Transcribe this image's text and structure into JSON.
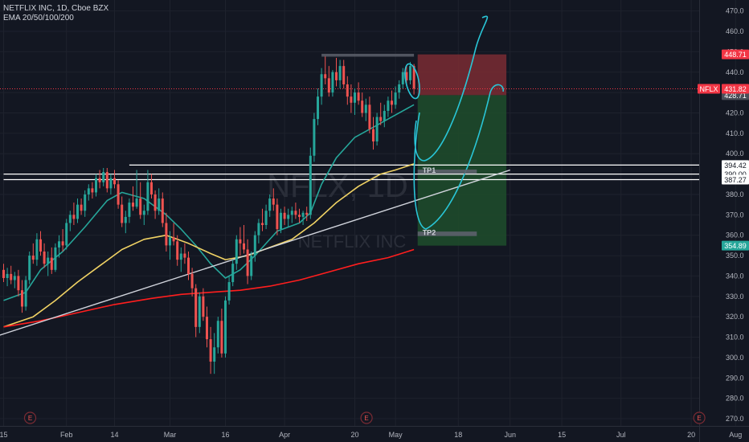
{
  "legend": {
    "symbol_line": "NETFLIX INC, 1D, Cboe BZX",
    "indicator_line": "EMA 20/50/100/200"
  },
  "watermark": {
    "ticker": "NFLX, 1D",
    "name": "NETFLIX INC"
  },
  "colors": {
    "background": "#131722",
    "grid": "#1e222d",
    "up": "#26a69a",
    "down": "#ef5350",
    "ema20": "#26a69a",
    "ema50": "#f0d264",
    "ema100": "#ff1e1e",
    "trendline": "#d1d4dc",
    "sketch": "#29c5d6",
    "stop_zone": "#7a2b33",
    "target_zone": "#1e4d2b"
  },
  "price_tags": {
    "stop": {
      "label": "448.71",
      "value": 448.71,
      "color": "#f23645"
    },
    "current": {
      "symbol": "NFLX",
      "label": "431.82",
      "value": 431.82,
      "color": "#f23645"
    },
    "entry": {
      "label": "428.71",
      "value": 428.71,
      "color": "#4a4e58"
    },
    "tp1_line": {
      "label": "394.42",
      "value": 394.42,
      "color": "#ffffff"
    },
    "tp1b_line": {
      "label": "390.00",
      "value": 390.0,
      "color": "#ffffff"
    },
    "tp2_line": {
      "label": "387.27",
      "value": 387.27,
      "color": "#ffffff"
    },
    "target": {
      "label": "354.89",
      "value": 354.89,
      "color": "#26a69a"
    }
  },
  "annotations": {
    "tp1": "TP1",
    "tp2": "TP2"
  },
  "chart_data": {
    "type": "candlestick",
    "timeframe": "1D",
    "ylim": [
      266,
      474
    ],
    "y_ticks": [
      270,
      280,
      290,
      300,
      310,
      320,
      330,
      340,
      350,
      360,
      370,
      380,
      390,
      400,
      410,
      420,
      430,
      440,
      450,
      460,
      470
    ],
    "x_labels": [
      {
        "label": "15",
        "day": 0
      },
      {
        "label": "Feb",
        "day": 17
      },
      {
        "label": "14",
        "day": 30
      },
      {
        "label": "Mar",
        "day": 45
      },
      {
        "label": "16",
        "day": 60
      },
      {
        "label": "Apr",
        "day": 76
      },
      {
        "label": "20",
        "day": 95
      },
      {
        "label": "May",
        "day": 106
      },
      {
        "label": "18",
        "day": 123
      },
      {
        "label": "Jun",
        "day": 137
      },
      {
        "label": "15",
        "day": 151
      },
      {
        "label": "Jul",
        "day": 167
      },
      {
        "label": "20",
        "day": 186
      },
      {
        "label": "Aug",
        "day": 198
      }
    ],
    "earnings_days": [
      5,
      96,
      186
    ],
    "earnings_label": "E",
    "candles": [
      {
        "d": 0,
        "o": 343,
        "h": 346,
        "l": 337,
        "c": 339
      },
      {
        "d": 1,
        "o": 339,
        "h": 344,
        "l": 335,
        "c": 341
      },
      {
        "d": 2,
        "o": 341,
        "h": 345,
        "l": 336,
        "c": 338
      },
      {
        "d": 3,
        "o": 338,
        "h": 342,
        "l": 334,
        "c": 340
      },
      {
        "d": 4,
        "o": 340,
        "h": 343,
        "l": 330,
        "c": 333
      },
      {
        "d": 5,
        "o": 333,
        "h": 338,
        "l": 322,
        "c": 325
      },
      {
        "d": 6,
        "o": 325,
        "h": 340,
        "l": 323,
        "c": 338
      },
      {
        "d": 7,
        "o": 338,
        "h": 352,
        "l": 336,
        "c": 350
      },
      {
        "d": 8,
        "o": 350,
        "h": 356,
        "l": 346,
        "c": 348
      },
      {
        "d": 9,
        "o": 348,
        "h": 361,
        "l": 345,
        "c": 358
      },
      {
        "d": 10,
        "o": 358,
        "h": 362,
        "l": 350,
        "c": 352
      },
      {
        "d": 11,
        "o": 352,
        "h": 356,
        "l": 344,
        "c": 346
      },
      {
        "d": 12,
        "o": 346,
        "h": 352,
        "l": 340,
        "c": 349
      },
      {
        "d": 13,
        "o": 349,
        "h": 354,
        "l": 341,
        "c": 343
      },
      {
        "d": 14,
        "o": 343,
        "h": 356,
        "l": 342,
        "c": 354
      },
      {
        "d": 15,
        "o": 354,
        "h": 360,
        "l": 349,
        "c": 357
      },
      {
        "d": 16,
        "o": 357,
        "h": 363,
        "l": 352,
        "c": 355
      },
      {
        "d": 17,
        "o": 355,
        "h": 368,
        "l": 353,
        "c": 366
      },
      {
        "d": 18,
        "o": 366,
        "h": 372,
        "l": 362,
        "c": 370
      },
      {
        "d": 19,
        "o": 370,
        "h": 376,
        "l": 365,
        "c": 368
      },
      {
        "d": 20,
        "o": 368,
        "h": 378,
        "l": 366,
        "c": 375
      },
      {
        "d": 21,
        "o": 375,
        "h": 378,
        "l": 370,
        "c": 372
      },
      {
        "d": 22,
        "o": 372,
        "h": 382,
        "l": 369,
        "c": 380
      },
      {
        "d": 23,
        "o": 380,
        "h": 385,
        "l": 377,
        "c": 383
      },
      {
        "d": 24,
        "o": 383,
        "h": 386,
        "l": 378,
        "c": 381
      },
      {
        "d": 25,
        "o": 381,
        "h": 390,
        "l": 379,
        "c": 388
      },
      {
        "d": 26,
        "o": 388,
        "h": 392,
        "l": 383,
        "c": 386
      },
      {
        "d": 27,
        "o": 386,
        "h": 393,
        "l": 384,
        "c": 391
      },
      {
        "d": 28,
        "o": 391,
        "h": 393,
        "l": 381,
        "c": 383
      },
      {
        "d": 29,
        "o": 383,
        "h": 390,
        "l": 380,
        "c": 388
      },
      {
        "d": 30,
        "o": 388,
        "h": 392,
        "l": 383,
        "c": 385
      },
      {
        "d": 31,
        "o": 385,
        "h": 387,
        "l": 373,
        "c": 375
      },
      {
        "d": 32,
        "o": 375,
        "h": 379,
        "l": 364,
        "c": 366
      },
      {
        "d": 33,
        "o": 366,
        "h": 372,
        "l": 361,
        "c": 369
      },
      {
        "d": 34,
        "o": 369,
        "h": 378,
        "l": 366,
        "c": 376
      },
      {
        "d": 35,
        "o": 376,
        "h": 384,
        "l": 372,
        "c": 374
      },
      {
        "d": 36,
        "o": 374,
        "h": 392,
        "l": 373,
        "c": 378
      },
      {
        "d": 37,
        "o": 378,
        "h": 386,
        "l": 368,
        "c": 370
      },
      {
        "d": 38,
        "o": 370,
        "h": 375,
        "l": 365,
        "c": 372
      },
      {
        "d": 39,
        "o": 372,
        "h": 392,
        "l": 370,
        "c": 386
      },
      {
        "d": 40,
        "o": 386,
        "h": 390,
        "l": 378,
        "c": 380
      },
      {
        "d": 41,
        "o": 380,
        "h": 382,
        "l": 368,
        "c": 372
      },
      {
        "d": 42,
        "o": 372,
        "h": 383,
        "l": 370,
        "c": 378
      },
      {
        "d": 43,
        "o": 378,
        "h": 381,
        "l": 364,
        "c": 366
      },
      {
        "d": 44,
        "o": 366,
        "h": 371,
        "l": 352,
        "c": 355
      },
      {
        "d": 45,
        "o": 355,
        "h": 362,
        "l": 348,
        "c": 359
      },
      {
        "d": 46,
        "o": 359,
        "h": 366,
        "l": 355,
        "c": 357
      },
      {
        "d": 47,
        "o": 357,
        "h": 360,
        "l": 345,
        "c": 348
      },
      {
        "d": 48,
        "o": 348,
        "h": 354,
        "l": 342,
        "c": 351
      },
      {
        "d": 49,
        "o": 351,
        "h": 356,
        "l": 346,
        "c": 349
      },
      {
        "d": 50,
        "o": 349,
        "h": 352,
        "l": 338,
        "c": 341
      },
      {
        "d": 51,
        "o": 341,
        "h": 344,
        "l": 330,
        "c": 334
      },
      {
        "d": 52,
        "o": 334,
        "h": 336,
        "l": 310,
        "c": 315
      },
      {
        "d": 53,
        "o": 315,
        "h": 332,
        "l": 312,
        "c": 330
      },
      {
        "d": 54,
        "o": 330,
        "h": 334,
        "l": 318,
        "c": 320
      },
      {
        "d": 55,
        "o": 320,
        "h": 325,
        "l": 305,
        "c": 309
      },
      {
        "d": 56,
        "o": 309,
        "h": 315,
        "l": 292,
        "c": 298
      },
      {
        "d": 57,
        "o": 298,
        "h": 312,
        "l": 292,
        "c": 305
      },
      {
        "d": 58,
        "o": 305,
        "h": 320,
        "l": 302,
        "c": 318
      },
      {
        "d": 59,
        "o": 318,
        "h": 324,
        "l": 300,
        "c": 302
      },
      {
        "d": 60,
        "o": 302,
        "h": 330,
        "l": 300,
        "c": 328
      },
      {
        "d": 61,
        "o": 328,
        "h": 340,
        "l": 326,
        "c": 337
      },
      {
        "d": 62,
        "o": 337,
        "h": 348,
        "l": 335,
        "c": 346
      },
      {
        "d": 63,
        "o": 346,
        "h": 360,
        "l": 343,
        "c": 358
      },
      {
        "d": 64,
        "o": 358,
        "h": 364,
        "l": 350,
        "c": 356
      },
      {
        "d": 65,
        "o": 356,
        "h": 365,
        "l": 351,
        "c": 353
      },
      {
        "d": 66,
        "o": 353,
        "h": 358,
        "l": 336,
        "c": 340
      },
      {
        "d": 67,
        "o": 340,
        "h": 352,
        "l": 338,
        "c": 350
      },
      {
        "d": 68,
        "o": 350,
        "h": 362,
        "l": 347,
        "c": 360
      },
      {
        "d": 69,
        "o": 360,
        "h": 368,
        "l": 356,
        "c": 366
      },
      {
        "d": 70,
        "o": 366,
        "h": 373,
        "l": 362,
        "c": 365
      },
      {
        "d": 71,
        "o": 365,
        "h": 375,
        "l": 363,
        "c": 372
      },
      {
        "d": 72,
        "o": 372,
        "h": 380,
        "l": 369,
        "c": 378
      },
      {
        "d": 73,
        "o": 378,
        "h": 383,
        "l": 372,
        "c": 375
      },
      {
        "d": 74,
        "o": 375,
        "h": 378,
        "l": 360,
        "c": 363
      },
      {
        "d": 75,
        "o": 363,
        "h": 373,
        "l": 361,
        "c": 371
      },
      {
        "d": 76,
        "o": 371,
        "h": 374,
        "l": 365,
        "c": 368
      },
      {
        "d": 77,
        "o": 368,
        "h": 373,
        "l": 364,
        "c": 370
      },
      {
        "d": 78,
        "o": 370,
        "h": 374,
        "l": 366,
        "c": 372
      },
      {
        "d": 79,
        "o": 372,
        "h": 376,
        "l": 368,
        "c": 370
      },
      {
        "d": 80,
        "o": 370,
        "h": 373,
        "l": 366,
        "c": 369
      },
      {
        "d": 81,
        "o": 369,
        "h": 372,
        "l": 365,
        "c": 371
      },
      {
        "d": 82,
        "o": 371,
        "h": 374,
        "l": 367,
        "c": 370
      },
      {
        "d": 83,
        "o": 370,
        "h": 403,
        "l": 368,
        "c": 399
      },
      {
        "d": 84,
        "o": 399,
        "h": 420,
        "l": 396,
        "c": 417
      },
      {
        "d": 85,
        "o": 417,
        "h": 432,
        "l": 414,
        "c": 428
      },
      {
        "d": 86,
        "o": 428,
        "h": 442,
        "l": 424,
        "c": 439
      },
      {
        "d": 87,
        "o": 439,
        "h": 448,
        "l": 434,
        "c": 437
      },
      {
        "d": 88,
        "o": 437,
        "h": 443,
        "l": 428,
        "c": 430
      },
      {
        "d": 89,
        "o": 430,
        "h": 441,
        "l": 428,
        "c": 440
      },
      {
        "d": 90,
        "o": 440,
        "h": 447,
        "l": 433,
        "c": 436
      },
      {
        "d": 91,
        "o": 436,
        "h": 446,
        "l": 432,
        "c": 443
      },
      {
        "d": 92,
        "o": 443,
        "h": 446,
        "l": 432,
        "c": 434
      },
      {
        "d": 93,
        "o": 434,
        "h": 438,
        "l": 424,
        "c": 428
      },
      {
        "d": 94,
        "o": 428,
        "h": 434,
        "l": 420,
        "c": 425
      },
      {
        "d": 95,
        "o": 425,
        "h": 432,
        "l": 419,
        "c": 430
      },
      {
        "d": 96,
        "o": 430,
        "h": 435,
        "l": 424,
        "c": 426
      },
      {
        "d": 97,
        "o": 426,
        "h": 430,
        "l": 418,
        "c": 420
      },
      {
        "d": 98,
        "o": 420,
        "h": 427,
        "l": 416,
        "c": 424
      },
      {
        "d": 99,
        "o": 424,
        "h": 428,
        "l": 410,
        "c": 412
      },
      {
        "d": 100,
        "o": 412,
        "h": 418,
        "l": 402,
        "c": 406
      },
      {
        "d": 101,
        "o": 406,
        "h": 420,
        "l": 404,
        "c": 418
      },
      {
        "d": 102,
        "o": 418,
        "h": 425,
        "l": 414,
        "c": 416
      },
      {
        "d": 103,
        "o": 416,
        "h": 424,
        "l": 413,
        "c": 421
      },
      {
        "d": 104,
        "o": 421,
        "h": 428,
        "l": 418,
        "c": 426
      },
      {
        "d": 105,
        "o": 426,
        "h": 431,
        "l": 420,
        "c": 424
      },
      {
        "d": 106,
        "o": 424,
        "h": 433,
        "l": 422,
        "c": 430
      },
      {
        "d": 107,
        "o": 430,
        "h": 436,
        "l": 427,
        "c": 434
      },
      {
        "d": 108,
        "o": 434,
        "h": 442,
        "l": 432,
        "c": 440
      },
      {
        "d": 109,
        "o": 440,
        "h": 443,
        "l": 434,
        "c": 436
      },
      {
        "d": 110,
        "o": 436,
        "h": 445,
        "l": 434,
        "c": 443
      },
      {
        "d": 111,
        "o": 443,
        "h": 444,
        "l": 429,
        "c": 432
      }
    ],
    "ema_series": [
      {
        "name": "EMA 20",
        "color": "#26a69a",
        "points": [
          [
            0,
            328
          ],
          [
            6,
            332
          ],
          [
            10,
            343
          ],
          [
            16,
            352
          ],
          [
            22,
            364
          ],
          [
            28,
            377
          ],
          [
            32,
            381
          ],
          [
            38,
            378
          ],
          [
            44,
            370
          ],
          [
            48,
            363
          ],
          [
            52,
            355
          ],
          [
            56,
            346
          ],
          [
            60,
            339
          ],
          [
            64,
            343
          ],
          [
            68,
            350
          ],
          [
            74,
            362
          ],
          [
            80,
            366
          ],
          [
            83,
            371
          ],
          [
            86,
            385
          ],
          [
            90,
            398
          ],
          [
            95,
            408
          ],
          [
            100,
            413
          ],
          [
            105,
            418
          ],
          [
            111,
            424
          ]
        ]
      },
      {
        "name": "EMA 50",
        "color": "#f0d264",
        "points": [
          [
            0,
            315
          ],
          [
            8,
            320
          ],
          [
            14,
            328
          ],
          [
            20,
            337
          ],
          [
            26,
            345
          ],
          [
            32,
            353
          ],
          [
            38,
            358
          ],
          [
            44,
            360
          ],
          [
            50,
            356
          ],
          [
            56,
            351
          ],
          [
            60,
            348
          ],
          [
            66,
            350
          ],
          [
            72,
            354
          ],
          [
            78,
            358
          ],
          [
            84,
            366
          ],
          [
            90,
            376
          ],
          [
            96,
            384
          ],
          [
            102,
            390
          ],
          [
            106,
            392
          ],
          [
            111,
            395
          ]
        ]
      },
      {
        "name": "EMA 100",
        "color": "#ff1e1e",
        "points": [
          [
            0,
            315
          ],
          [
            10,
            318
          ],
          [
            20,
            322
          ],
          [
            30,
            326
          ],
          [
            40,
            329
          ],
          [
            48,
            331
          ],
          [
            56,
            332
          ],
          [
            64,
            333
          ],
          [
            72,
            335
          ],
          [
            80,
            338
          ],
          [
            88,
            342
          ],
          [
            96,
            346
          ],
          [
            104,
            349
          ],
          [
            111,
            353
          ]
        ]
      }
    ],
    "trendline": {
      "from": [
        -1,
        311
      ],
      "to": [
        137,
        392
      ]
    },
    "levels": [
      {
        "name": "level-394",
        "value": 394.42,
        "from_day": 34
      },
      {
        "name": "level-390",
        "value": 390.0,
        "from_day": 0
      },
      {
        "name": "level-387",
        "value": 387.27,
        "from_day": 0
      }
    ],
    "position": {
      "type": "short",
      "start_day": 112,
      "end_day": 136,
      "entry": 428.71,
      "stop": 448.71,
      "target": 354.89
    },
    "consolidation_box": {
      "from_day": 86,
      "to_day": 111,
      "top": 449,
      "bottom": 447.6
    },
    "tp1_box": {
      "from_day": 112,
      "to_day": 128,
      "top": 392.2,
      "bottom": 390.2
    },
    "tp2_box": {
      "from_day": 112,
      "to_day": 128,
      "top": 361.8,
      "bottom": 359.6
    }
  }
}
